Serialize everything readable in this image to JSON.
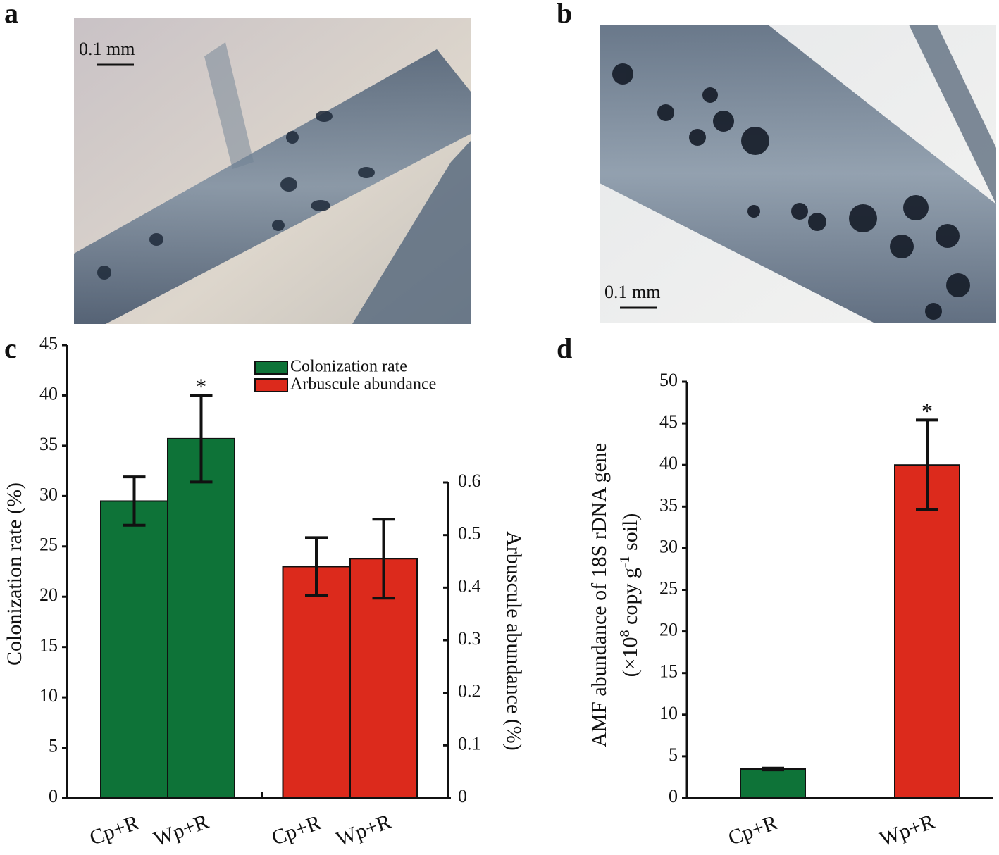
{
  "panels": {
    "a": {
      "label": "a",
      "scale_bar": "0.1 mm"
    },
    "b": {
      "label": "b",
      "scale_bar": "0.1 mm"
    }
  },
  "chart_data": [
    {
      "type": "bar",
      "panel": "c",
      "categories": [
        "Cp+R",
        "Wp+R",
        "Cp+R",
        "Wp+R"
      ],
      "ylabel": "Colonization rate (%)",
      "y2label": "Arbuscule abundance (%)",
      "ylim": [
        0,
        45
      ],
      "yticks": [
        0,
        5,
        10,
        15,
        20,
        25,
        30,
        35,
        40,
        45
      ],
      "y2lim": [
        0,
        0.6
      ],
      "y2ticks": [
        0,
        0.1,
        0.2,
        0.3,
        0.4,
        0.5,
        0.6
      ],
      "series": [
        {
          "name": "Colonization rate",
          "color": "#0e7338",
          "values": [
            29.5,
            35.7,
            null,
            null
          ],
          "errors": [
            2.4,
            4.3,
            null,
            null
          ],
          "significance": [
            null,
            "*",
            null,
            null
          ]
        },
        {
          "name": "Arbuscule abundance",
          "color": "#dc2a1c",
          "axis": "y2",
          "values": [
            null,
            null,
            0.44,
            0.455
          ],
          "errors": [
            null,
            null,
            0.055,
            0.075
          ],
          "significance": [
            null,
            null,
            null,
            null
          ]
        }
      ]
    },
    {
      "type": "bar",
      "panel": "d",
      "categories": [
        "Cp+R",
        "Wp+R"
      ],
      "ylabel": [
        "AMF abundance of 18S rDNA gene",
        [
          "(×10",
          "8",
          " copy g",
          "-1",
          " soil)"
        ]
      ],
      "ylim": [
        0,
        50
      ],
      "yticks": [
        0,
        5,
        10,
        15,
        20,
        25,
        30,
        35,
        40,
        45,
        50
      ],
      "series": [
        {
          "colors": [
            "#0e7338",
            "#dc2a1c"
          ],
          "values": [
            3.47,
            40.0
          ],
          "errors": [
            0.1,
            5.4
          ],
          "significance": [
            null,
            "*"
          ]
        }
      ]
    }
  ]
}
